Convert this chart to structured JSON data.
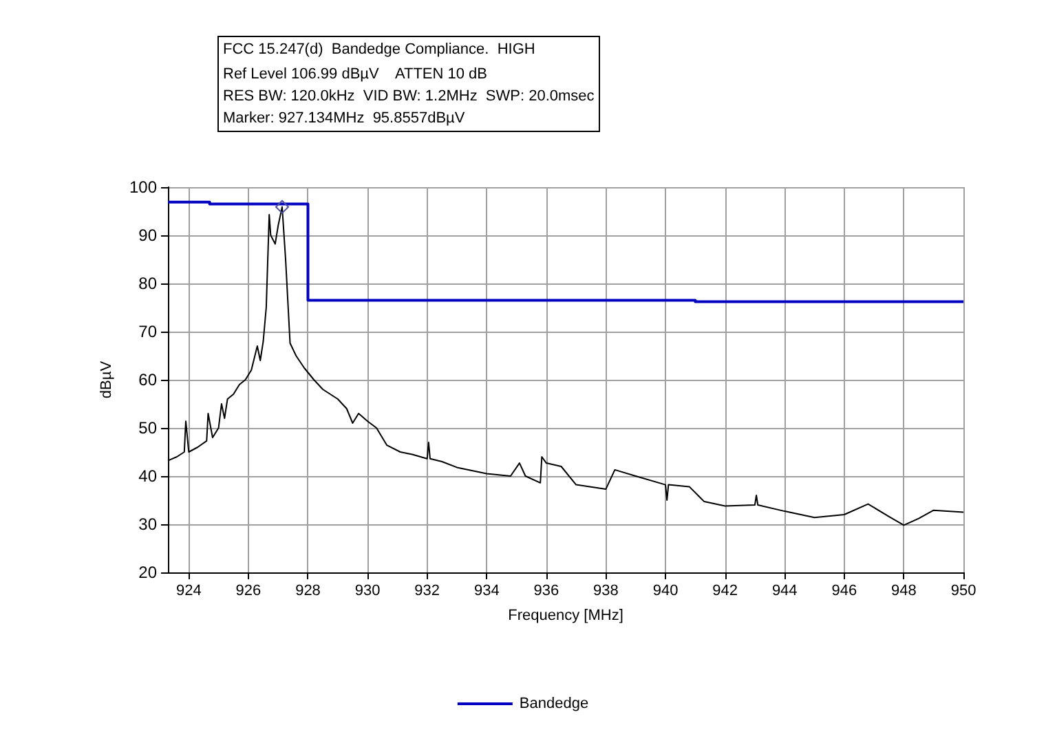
{
  "chart_data": {
    "type": "line",
    "title": "FCC 15.247(d)  Bandedge Compliance.  HIGH",
    "subtitle": "Ref Level 106.99 dBµV    ATTEN 10 dB\nRES BW: 120.0kHz  VID BW: 1.2MHz  SWP: 20.0msec",
    "annotations": [
      "Marker: 927.134MHz  95.8557dBµV"
    ],
    "xlabel": "Frequency [MHz]",
    "ylabel": "dBµV",
    "xlim": [
      923.3,
      950
    ],
    "xticks": [
      924,
      926,
      928,
      930,
      932,
      934,
      936,
      938,
      940,
      942,
      944,
      946,
      948,
      950
    ],
    "ylim": [
      20,
      100
    ],
    "yticks": [
      20,
      30,
      40,
      50,
      60,
      70,
      80,
      90,
      100
    ],
    "grid": true,
    "legend": "bottom",
    "marker": "none",
    "line_style": "solid",
    "series": [
      {
        "color": "#000000",
        "x": [
          923.3,
          923.6,
          923.85,
          923.9,
          924.0,
          924.3,
          924.6,
          924.65,
          924.8,
          925.0,
          925.1,
          925.2,
          925.3,
          925.5,
          925.7,
          925.9,
          926.1,
          926.3,
          926.4,
          926.5,
          926.6,
          926.7,
          926.75,
          926.9,
          927.0,
          927.134,
          927.25,
          927.4,
          927.6,
          927.87,
          928.2,
          928.5,
          929.0,
          929.3,
          929.5,
          929.7,
          930.0,
          930.3,
          930.65,
          931.1,
          931.5,
          932.0,
          932.05,
          932.1,
          932.5,
          933.0,
          934.0,
          934.8,
          935.1,
          935.3,
          935.8,
          935.85,
          936.0,
          936.5,
          937.0,
          938.0,
          938.3,
          939.0,
          940.0,
          940.05,
          940.1,
          940.8,
          941.3,
          942.0,
          943.0,
          943.05,
          943.1,
          944.0,
          945.0,
          946.0,
          946.8,
          947.5,
          948.0,
          948.5,
          949.0,
          950.0
        ],
        "values": [
          43.2,
          44,
          45,
          51.4,
          45,
          46,
          47.3,
          53,
          48,
          50,
          55,
          52,
          56,
          57,
          59,
          60,
          62,
          67,
          64,
          68,
          75,
          94.3,
          90,
          88.2,
          92,
          95.9,
          85,
          67.6,
          65,
          62.5,
          60,
          58,
          56,
          54,
          51,
          53,
          51.4,
          50,
          46.4,
          45,
          44.5,
          43.6,
          47,
          43.6,
          43,
          41.8,
          40.5,
          40,
          42.7,
          40,
          38.6,
          44,
          42.7,
          42,
          38.2,
          37.3,
          41.3,
          40,
          38.2,
          35,
          38.2,
          37.8,
          34.7,
          33.8,
          34,
          36,
          34,
          32.7,
          31.4,
          32,
          34.2,
          31.6,
          29.8,
          31.2,
          32.9,
          32.5
        ]
      },
      {
        "name": "Bandedge",
        "type": "step",
        "color": "#0000c0",
        "x": [
          923.3,
          924.7,
          928,
          941,
          950
        ],
        "values": [
          96.9,
          96.5,
          76.5,
          76.2,
          76.2
        ]
      }
    ]
  }
}
